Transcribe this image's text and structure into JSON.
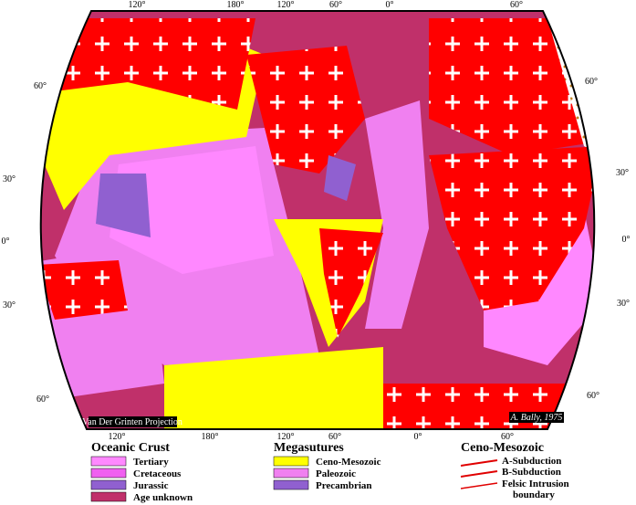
{
  "map": {
    "labels_top": [
      "120°",
      "180°",
      "120°",
      "60°",
      "0°",
      "60°"
    ],
    "labels_left": [
      "60°",
      "30°",
      "0°",
      "30°",
      "60°"
    ],
    "labels_right": [
      "60°",
      "30°",
      "0°",
      "30°",
      "60°"
    ],
    "labels_bottom": [
      "120°",
      "180°",
      "120°",
      "60°",
      "0°",
      "60°"
    ],
    "projection": "Van Der Grinten Projection",
    "credit": "A. Bally, 1975"
  },
  "legend": {
    "oceanic": {
      "title": "Oceanic Crust",
      "items": [
        "Tertiary",
        "Cretaceous",
        "Jurassic",
        "Age unknown"
      ]
    },
    "megasutures": {
      "title": "Megasutures",
      "items": [
        "Ceno-Mesozoic",
        "Paleozoic",
        "Precambrian"
      ]
    },
    "ceno": {
      "title": "Ceno-Mesozoic",
      "items": [
        "A-Subduction",
        "B-Subduction",
        "Felsic Intrusion",
        "boundary"
      ]
    }
  }
}
